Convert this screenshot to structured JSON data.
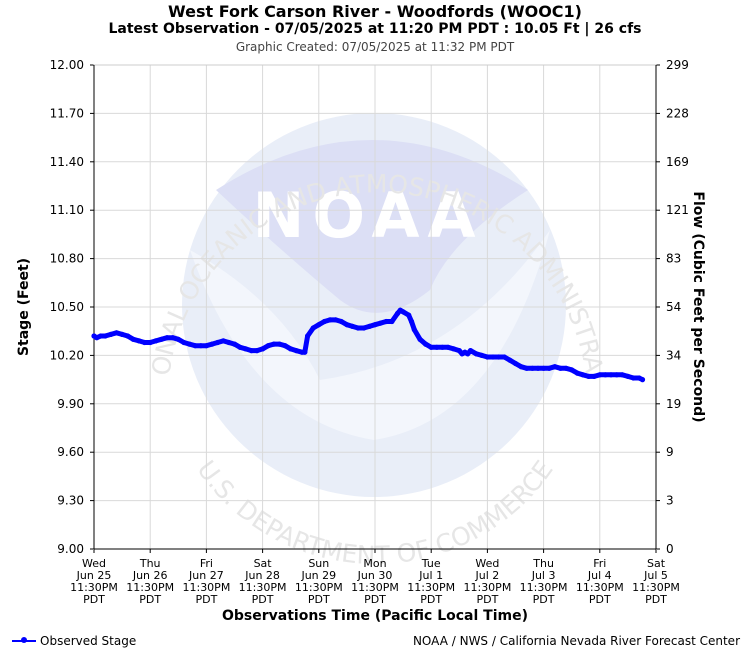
{
  "title": "West Fork Carson River - Woodfords (WOOC1)",
  "subtitle": "Latest Observation - 07/05/2025 at 11:20 PM PDT : 10.05 Ft | 26 cfs",
  "created": "Graphic Created: 07/05/2025 at 11:32 PM PDT",
  "credit": "NOAA / NWS / California Nevada River Forecast Center",
  "watermark": {
    "logo_text": "NOAA",
    "top_arc": "NATIONAL OCEANIC AND ATMOSPHERIC ADMINISTRATION",
    "bottom_arc": "U.S. DEPARTMENT OF COMMERCE"
  },
  "colors": {
    "series": "#0000ff",
    "grid": "#d9d9d9",
    "watermark": "#e3e9f7"
  },
  "chart_data": {
    "type": "line",
    "title": "West Fork Carson River - Woodfords (WOOC1)",
    "xlabel": "Observations Time (Pacific Local Time)",
    "ylabel": "Stage (Feet)",
    "y2label": "Flow (Cubic Feet per Second)",
    "ylim": [
      9.0,
      12.0
    ],
    "xlim": [
      0,
      10
    ],
    "grid": true,
    "legend_position": "bottom-left",
    "y_ticks": [
      "12.00",
      "11.70",
      "11.40",
      "11.10",
      "10.80",
      "10.50",
      "10.20",
      "9.90",
      "9.60",
      "9.30",
      "9.00"
    ],
    "y2_ticks": [
      "299",
      "228",
      "169",
      "121",
      "83",
      "54",
      "34",
      "19",
      "9",
      "3",
      "0"
    ],
    "x_ticks": [
      [
        "Wed",
        "Jun 25",
        "11:30PM",
        "PDT"
      ],
      [
        "Thu",
        "Jun 26",
        "11:30PM",
        "PDT"
      ],
      [
        "Fri",
        "Jun 27",
        "11:30PM",
        "PDT"
      ],
      [
        "Sat",
        "Jun 28",
        "11:30PM",
        "PDT"
      ],
      [
        "Sun",
        "Jun 29",
        "11:30PM",
        "PDT"
      ],
      [
        "Mon",
        "Jun 30",
        "11:30PM",
        "PDT"
      ],
      [
        "Tue",
        "Jul 1",
        "11:30PM",
        "PDT"
      ],
      [
        "Wed",
        "Jul 2",
        "11:30PM",
        "PDT"
      ],
      [
        "Thu",
        "Jul 3",
        "11:30PM",
        "PDT"
      ],
      [
        "Fri",
        "Jul 4",
        "11:30PM",
        "PDT"
      ],
      [
        "Sat",
        "Jul 5",
        "11:30PM",
        "PDT"
      ]
    ],
    "series": [
      {
        "name": "Observed Stage",
        "points": [
          [
            0.0,
            10.32
          ],
          [
            0.05,
            10.31
          ],
          [
            0.12,
            10.32
          ],
          [
            0.2,
            10.32
          ],
          [
            0.3,
            10.33
          ],
          [
            0.4,
            10.34
          ],
          [
            0.5,
            10.33
          ],
          [
            0.6,
            10.32
          ],
          [
            0.7,
            10.3
          ],
          [
            0.8,
            10.29
          ],
          [
            0.9,
            10.28
          ],
          [
            1.0,
            10.28
          ],
          [
            1.1,
            10.29
          ],
          [
            1.2,
            10.3
          ],
          [
            1.3,
            10.31
          ],
          [
            1.4,
            10.31
          ],
          [
            1.5,
            10.3
          ],
          [
            1.6,
            10.28
          ],
          [
            1.7,
            10.27
          ],
          [
            1.8,
            10.26
          ],
          [
            1.9,
            10.26
          ],
          [
            2.0,
            10.26
          ],
          [
            2.1,
            10.27
          ],
          [
            2.2,
            10.28
          ],
          [
            2.3,
            10.29
          ],
          [
            2.4,
            10.28
          ],
          [
            2.5,
            10.27
          ],
          [
            2.6,
            10.25
          ],
          [
            2.7,
            10.24
          ],
          [
            2.8,
            10.23
          ],
          [
            2.9,
            10.23
          ],
          [
            3.0,
            10.24
          ],
          [
            3.1,
            10.26
          ],
          [
            3.2,
            10.27
          ],
          [
            3.3,
            10.27
          ],
          [
            3.4,
            10.26
          ],
          [
            3.5,
            10.24
          ],
          [
            3.6,
            10.23
          ],
          [
            3.7,
            10.22
          ],
          [
            3.75,
            10.22
          ],
          [
            3.8,
            10.32
          ],
          [
            3.9,
            10.37
          ],
          [
            4.0,
            10.39
          ],
          [
            4.1,
            10.41
          ],
          [
            4.2,
            10.42
          ],
          [
            4.3,
            10.42
          ],
          [
            4.4,
            10.41
          ],
          [
            4.5,
            10.39
          ],
          [
            4.6,
            10.38
          ],
          [
            4.7,
            10.37
          ],
          [
            4.8,
            10.37
          ],
          [
            4.9,
            10.38
          ],
          [
            5.0,
            10.39
          ],
          [
            5.1,
            10.4
          ],
          [
            5.2,
            10.41
          ],
          [
            5.3,
            10.41
          ],
          [
            5.4,
            10.46
          ],
          [
            5.45,
            10.48
          ],
          [
            5.5,
            10.47
          ],
          [
            5.6,
            10.45
          ],
          [
            5.65,
            10.41
          ],
          [
            5.7,
            10.36
          ],
          [
            5.8,
            10.3
          ],
          [
            5.9,
            10.27
          ],
          [
            6.0,
            10.25
          ],
          [
            6.1,
            10.25
          ],
          [
            6.2,
            10.25
          ],
          [
            6.3,
            10.25
          ],
          [
            6.4,
            10.24
          ],
          [
            6.5,
            10.23
          ],
          [
            6.55,
            10.21
          ],
          [
            6.6,
            10.22
          ],
          [
            6.65,
            10.21
          ],
          [
            6.7,
            10.23
          ],
          [
            6.8,
            10.21
          ],
          [
            6.9,
            10.2
          ],
          [
            7.0,
            10.19
          ],
          [
            7.1,
            10.19
          ],
          [
            7.2,
            10.19
          ],
          [
            7.3,
            10.19
          ],
          [
            7.4,
            10.17
          ],
          [
            7.5,
            10.15
          ],
          [
            7.6,
            10.13
          ],
          [
            7.7,
            10.12
          ],
          [
            7.8,
            10.12
          ],
          [
            7.9,
            10.12
          ],
          [
            8.0,
            10.12
          ],
          [
            8.1,
            10.12
          ],
          [
            8.2,
            10.13
          ],
          [
            8.3,
            10.12
          ],
          [
            8.4,
            10.12
          ],
          [
            8.5,
            10.11
          ],
          [
            8.6,
            10.09
          ],
          [
            8.7,
            10.08
          ],
          [
            8.8,
            10.07
          ],
          [
            8.9,
            10.07
          ],
          [
            9.0,
            10.08
          ],
          [
            9.1,
            10.08
          ],
          [
            9.2,
            10.08
          ],
          [
            9.3,
            10.08
          ],
          [
            9.4,
            10.08
          ],
          [
            9.5,
            10.07
          ],
          [
            9.6,
            10.06
          ],
          [
            9.7,
            10.06
          ],
          [
            9.76,
            10.05
          ]
        ]
      }
    ]
  },
  "legend": {
    "label": "Observed Stage"
  }
}
